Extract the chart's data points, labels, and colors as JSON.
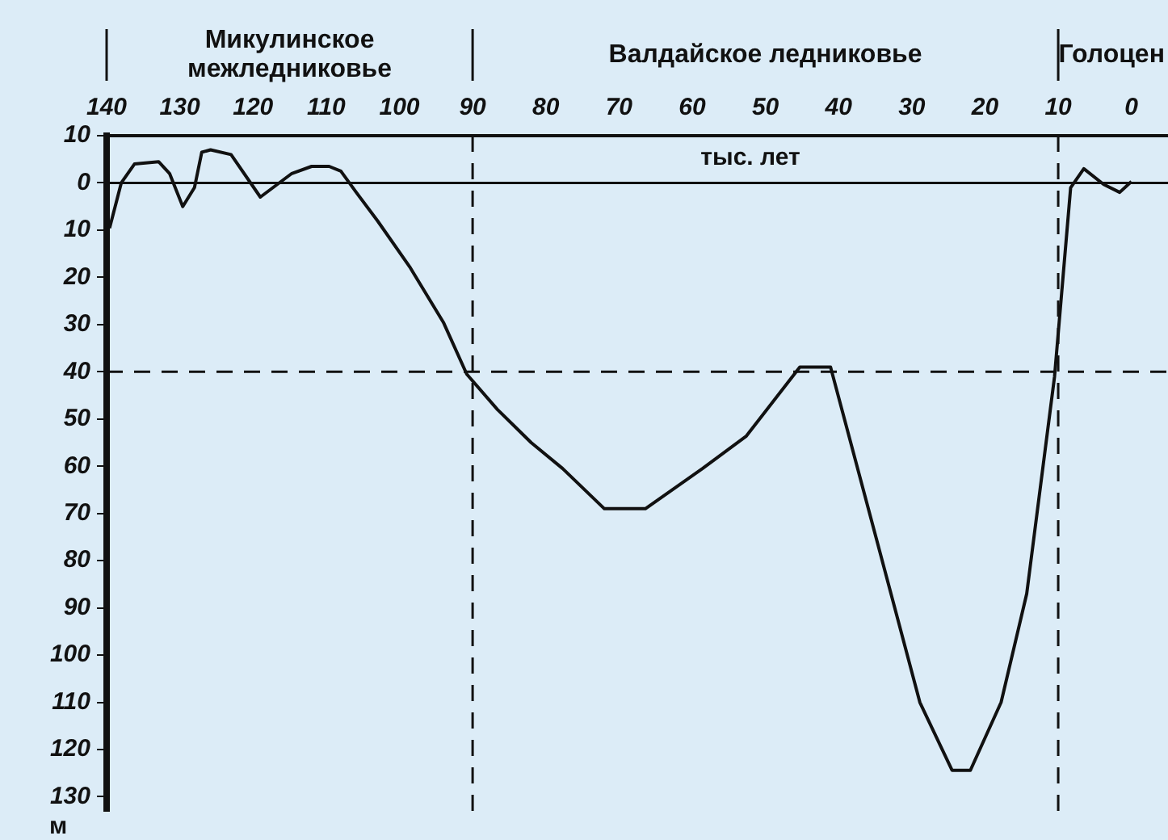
{
  "chart_data": {
    "type": "line",
    "xlabel": "тыс. лет",
    "ylabel": "м",
    "x": [
      139.6,
      138,
      136.2,
      132.9,
      131.4,
      129.6,
      128,
      127,
      125.8,
      123,
      119,
      114.7,
      112,
      109.6,
      108,
      105.9,
      103,
      98.5,
      94,
      90.8,
      86.6,
      82,
      77.7,
      72,
      66.4,
      58.6,
      52.6,
      45.3,
      41.1,
      34.9,
      28.9,
      24.5,
      22,
      17.8,
      14.3,
      10.5,
      8.3,
      6.5,
      3.8,
      1.6,
      0
    ],
    "series": [
      {
        "color": "#111111",
        "values": [
          9.6,
          0,
          -4,
          -4.5,
          -2,
          5,
          1,
          -6.5,
          -7,
          -6,
          3,
          -2,
          -3.5,
          -3.5,
          -2.5,
          2,
          8,
          18,
          29.5,
          40.5,
          48,
          55,
          60.5,
          69,
          69,
          60.5,
          53.6,
          39,
          39,
          75,
          110,
          124.4,
          124.4,
          110,
          87,
          41,
          1,
          -3,
          0.3,
          2,
          -0.3
        ]
      }
    ],
    "xlim": [
      140,
      -5
    ],
    "xticks": [
      140,
      130,
      120,
      110,
      100,
      90,
      80,
      70,
      60,
      50,
      40,
      30,
      20,
      10,
      0
    ],
    "ylim": [
      133,
      -10
    ],
    "yticks": [
      {
        "value": -10,
        "label": "10"
      },
      0,
      10,
      20,
      30,
      40,
      50,
      60,
      70,
      80,
      90,
      100,
      110,
      120,
      130
    ],
    "ref_lines": [
      {
        "axis": "y",
        "value": 0,
        "line_style": "solid"
      },
      {
        "axis": "y",
        "value": 40,
        "line_style": "dashed"
      },
      {
        "axis": "x",
        "value": 90,
        "line_style": "dashed"
      },
      {
        "axis": "x",
        "value": 10,
        "line_style": "dashed"
      }
    ],
    "annotations": [
      "Микулинское\nмежледниковье",
      "Валдайское ледниковье",
      "Голоцен"
    ],
    "grid": false,
    "legend": false,
    "marker": "none",
    "line_style": "solid"
  }
}
